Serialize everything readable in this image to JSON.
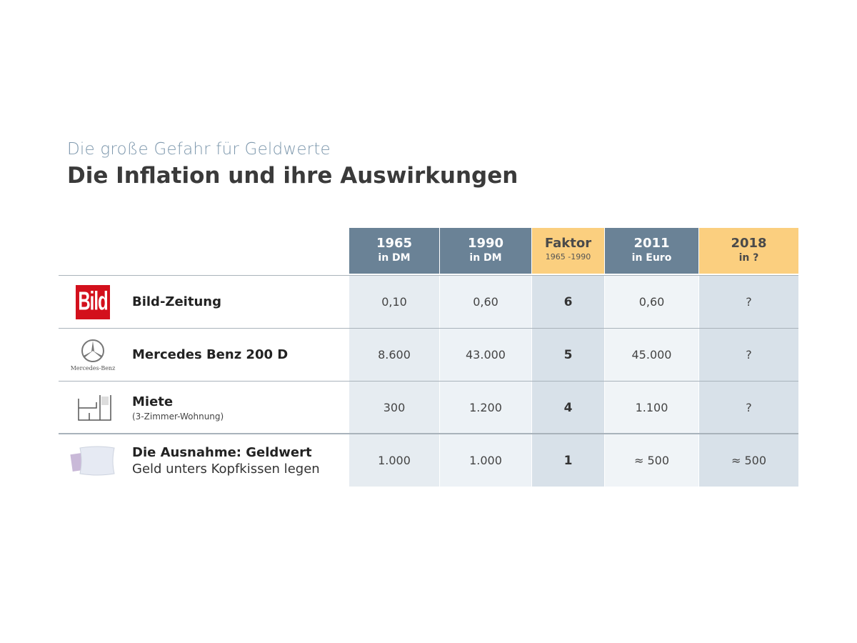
{
  "subtitle": "Die große Gefahr für Geldwerte",
  "title": "Die Inflation und ihre Auswirkungen",
  "colors": {
    "header_slate": "#6a8296",
    "header_orange": "#fbcf7f",
    "bild_red": "#d3101c"
  },
  "columns": [
    {
      "year": "1965",
      "unit": "in DM"
    },
    {
      "year": "1990",
      "unit": "in DM"
    },
    {
      "year": "Faktor",
      "unit": "1965 -1990"
    },
    {
      "year": "2011",
      "unit": "in Euro"
    },
    {
      "year": "2018",
      "unit": "in ?"
    }
  ],
  "rows": [
    {
      "icon": "bild-logo",
      "logo_text": "Bild",
      "label": "Bild-Zeitung",
      "sub": "",
      "values": [
        "0,10",
        "0,60",
        "6",
        "0,60",
        "?"
      ]
    },
    {
      "icon": "mercedes-logo",
      "logo_text": "Mercedes-Benz",
      "label": "Mercedes Benz 200 D",
      "sub": "",
      "values": [
        "8.600",
        "43.000",
        "5",
        "45.000",
        "?"
      ]
    },
    {
      "icon": "floorplan-icon",
      "label": "Miete",
      "sub": "(3-Zimmer-Wohnung)",
      "values": [
        "300",
        "1.200",
        "4",
        "1.100",
        "?"
      ]
    },
    {
      "icon": "pillow-icon",
      "label": "Die Ausnahme: Geldwert",
      "sub": "Geld unters Kopfkissen legen",
      "values": [
        "1.000",
        "1.000",
        "1",
        "≈ 500",
        "≈ 500"
      ]
    }
  ]
}
